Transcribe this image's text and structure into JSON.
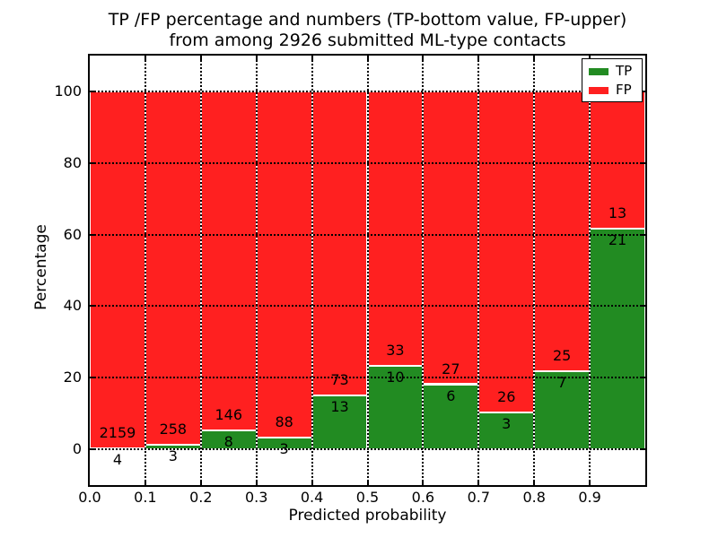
{
  "title": {
    "line1": "TP /FP percentage and numbers (TP-bottom value, FP-upper)",
    "line2": "from among 2926 submitted ML-type contacts"
  },
  "chart_data": {
    "type": "bar",
    "variant": "stacked-percentage",
    "title": "TP /FP percentage and numbers (TP-bottom value, FP-upper)\nfrom among 2926 submitted ML-type contacts",
    "xlabel": "Predicted probability",
    "ylabel": "Percentage",
    "categories": [
      "0.0",
      "0.1",
      "0.2",
      "0.3",
      "0.4",
      "0.5",
      "0.6",
      "0.7",
      "0.8",
      "0.9"
    ],
    "bin_width": 0.1,
    "series": [
      {
        "name": "TP",
        "counts": [
          4,
          3,
          8,
          3,
          13,
          10,
          6,
          3,
          7,
          21
        ]
      },
      {
        "name": "FP",
        "counts": [
          2159,
          258,
          146,
          88,
          73,
          33,
          27,
          26,
          25,
          13
        ]
      }
    ],
    "bar_value_labels": "TP count below segment boundary, FP count above segment boundary",
    "xticks": [
      "0.0",
      "0.1",
      "0.2",
      "0.3",
      "0.4",
      "0.5",
      "0.6",
      "0.7",
      "0.8",
      "0.9"
    ],
    "yticks": [
      0,
      20,
      40,
      60,
      80,
      100
    ],
    "xlim": [
      0,
      1
    ],
    "ylim": [
      -10,
      110
    ],
    "grid": {
      "on": true,
      "style": "dotted",
      "color": "#000000",
      "above_bars": true
    },
    "legend": {
      "position": "upper right",
      "entries": [
        {
          "label": "TP",
          "color": "#228b22"
        },
        {
          "label": "FP",
          "color": "#ff2020"
        }
      ]
    },
    "colors": {
      "tp": "#228b22",
      "fp": "#ff2020",
      "bar_edge": "#ffffff",
      "background": "#ffffff",
      "text": "#000000"
    }
  }
}
